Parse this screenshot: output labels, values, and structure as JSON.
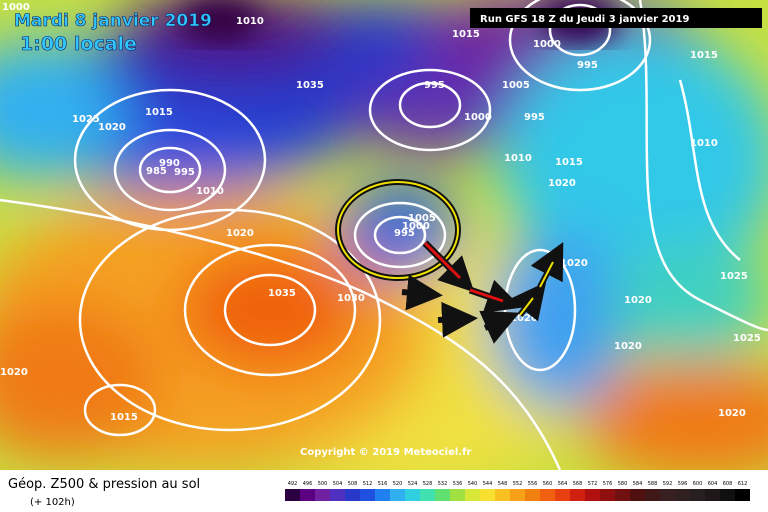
{
  "header": {
    "date": "Mardi 8 janvier 2019",
    "time": "1:00 locale",
    "run": "Run GFS 18 Z du Jeudi 3 janvier 2019"
  },
  "copyright": "Copyright © 2019 Meteociel.fr",
  "footer": {
    "title": "Géop. Z500 & pression au sol",
    "lead": "(+ 102h)"
  },
  "isobar_labels": [
    "1000",
    "1010",
    "1015",
    "1000",
    "995",
    "1005",
    "1015",
    "1035",
    "995",
    "1000",
    "995",
    "1010",
    "1015",
    "1025",
    "1020",
    "1015",
    "985",
    "990",
    "995",
    "1010",
    "1020",
    "1020",
    "1035",
    "1010",
    "995",
    "1000",
    "1005",
    "1020",
    "1030",
    "1020",
    "1025",
    "1020",
    "1025",
    "1020",
    "1020",
    "1015",
    "1020"
  ],
  "scale": [
    "492",
    "496",
    "500",
    "504",
    "508",
    "512",
    "516",
    "520",
    "524",
    "528",
    "532",
    "536",
    "540",
    "544",
    "548",
    "552",
    "556",
    "560",
    "564",
    "568",
    "572",
    "576",
    "580",
    "584",
    "588",
    "592",
    "596",
    "600",
    "604",
    "608",
    "612"
  ]
}
